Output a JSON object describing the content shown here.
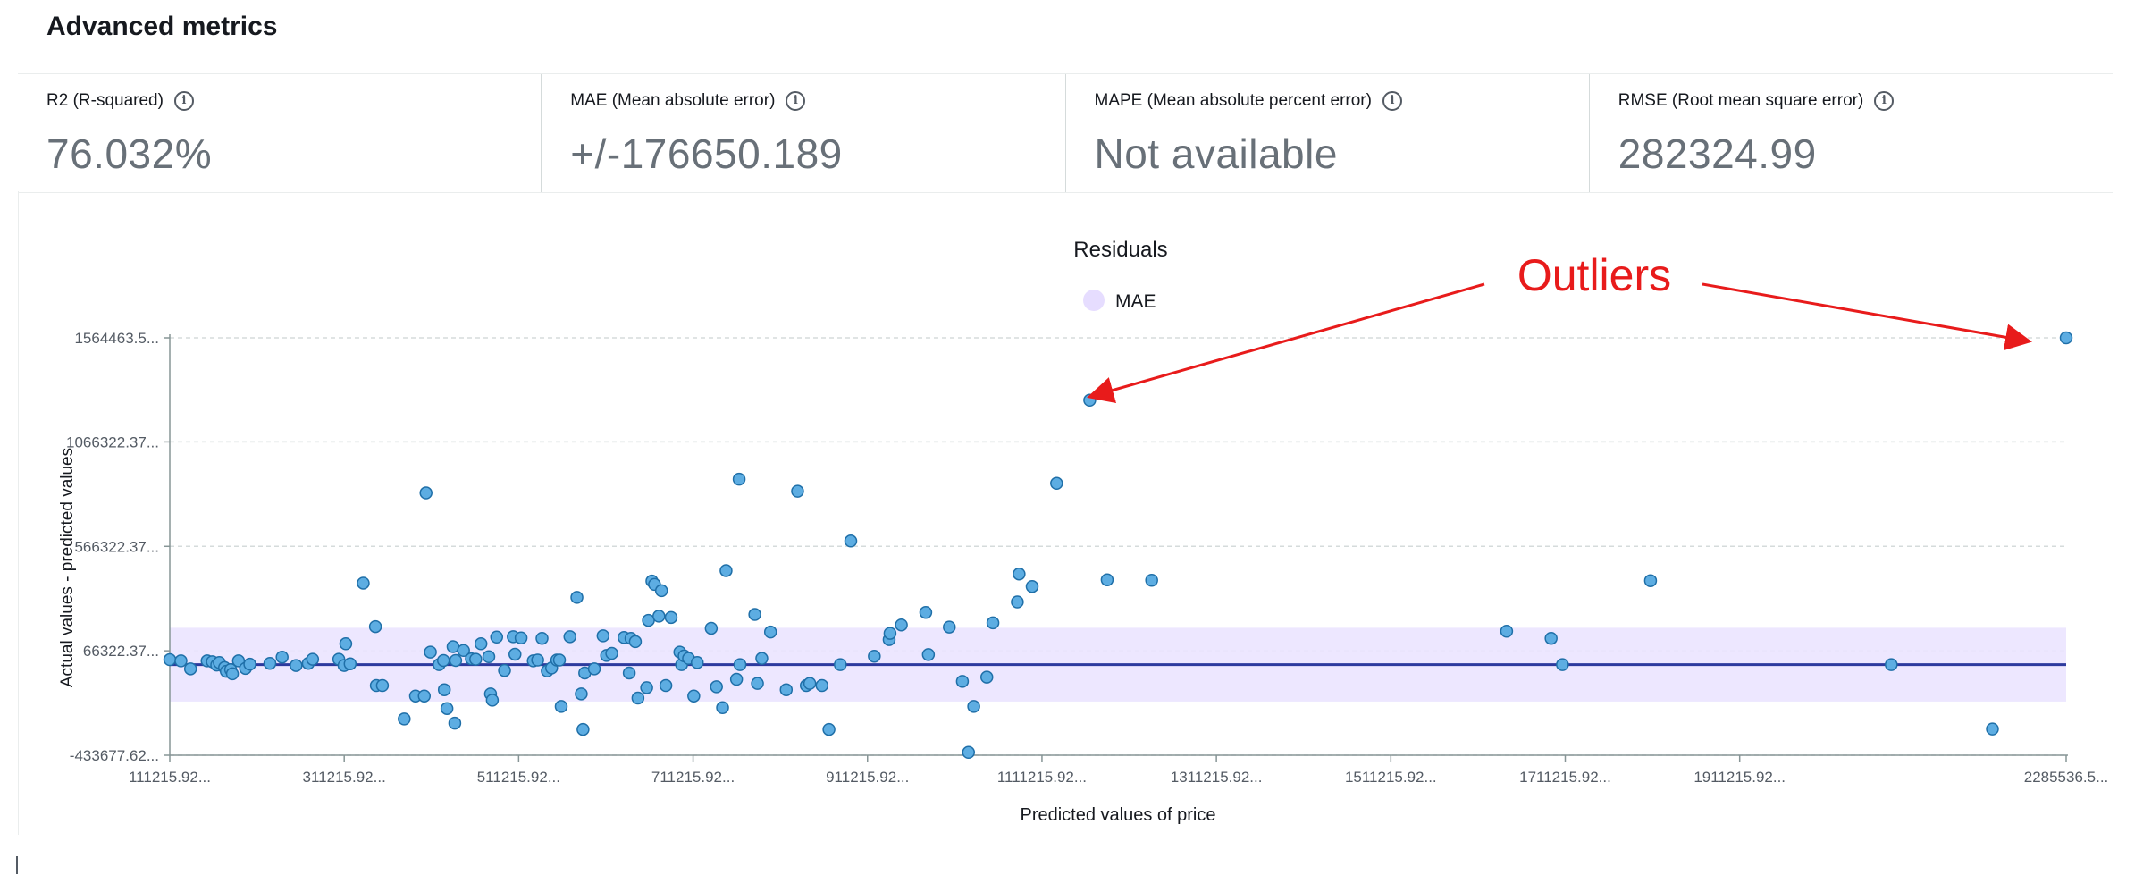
{
  "section": {
    "title": "Advanced metrics"
  },
  "metrics": [
    {
      "label": "R2 (R-squared)",
      "value": "76.032%"
    },
    {
      "label": "MAE (Mean absolute error)",
      "value": "+/-176650.189"
    },
    {
      "label": "MAPE (Mean absolute percent error)",
      "value": "Not available"
    },
    {
      "label": "RMSE (Root mean square error)",
      "value": "282324.99"
    }
  ],
  "chart_data": {
    "type": "scatter",
    "title": "Residuals",
    "legend": [
      {
        "name": "MAE",
        "color": "#e6ddff"
      }
    ],
    "xlabel": "Predicted values of price",
    "ylabel": "Actual values - predicted values",
    "x_ticks": [
      {
        "value": 111215.92,
        "label": "111215.92..."
      },
      {
        "value": 311215.92,
        "label": "311215.92..."
      },
      {
        "value": 511215.92,
        "label": "511215.92..."
      },
      {
        "value": 711215.92,
        "label": "711215.92..."
      },
      {
        "value": 911215.92,
        "label": "911215.92..."
      },
      {
        "value": 1111215.92,
        "label": "1111215.92..."
      },
      {
        "value": 1311215.92,
        "label": "1311215.92..."
      },
      {
        "value": 1511215.92,
        "label": "1511215.92..."
      },
      {
        "value": 1711215.92,
        "label": "1711215.92..."
      },
      {
        "value": 1911215.92,
        "label": "1911215.92..."
      },
      {
        "value": 2285536.5,
        "label": "2285536.5..."
      }
    ],
    "y_ticks": [
      {
        "value": 1564463.5,
        "label": "1564463.5..."
      },
      {
        "value": 1066322.37,
        "label": "1066322.37..."
      },
      {
        "value": 566322.37,
        "label": "566322.37..."
      },
      {
        "value": 66322.37,
        "label": "66322.37..."
      },
      {
        "value": -433677.62,
        "label": "-433677.62..."
      }
    ],
    "xlim": [
      111215.92,
      2285536.5
    ],
    "ylim": [
      -433677.62,
      1564463.5
    ],
    "mae_band": {
      "center": 0,
      "half_width": 176650.189
    },
    "grid": {
      "horizontal": true,
      "vertical": false
    },
    "point_color": "#5dade2",
    "points": [
      [
        111216,
        24000
      ],
      [
        124000,
        18000
      ],
      [
        135000,
        -20000
      ],
      [
        154000,
        18000
      ],
      [
        160000,
        14000
      ],
      [
        165000,
        -2000
      ],
      [
        168000,
        10000
      ],
      [
        174000,
        -14000
      ],
      [
        176000,
        -32000
      ],
      [
        181000,
        -24000
      ],
      [
        183000,
        -44000
      ],
      [
        190000,
        18000
      ],
      [
        198000,
        -18000
      ],
      [
        203000,
        2000
      ],
      [
        226000,
        6000
      ],
      [
        240000,
        36000
      ],
      [
        256000,
        -4000
      ],
      [
        270000,
        6000
      ],
      [
        275000,
        26000
      ],
      [
        305000,
        26000
      ],
      [
        311000,
        -4000
      ],
      [
        313000,
        100000
      ],
      [
        318000,
        4000
      ],
      [
        333000,
        390000
      ],
      [
        347000,
        182000
      ],
      [
        348000,
        -100000
      ],
      [
        355000,
        -100000
      ],
      [
        380000,
        -260000
      ],
      [
        393000,
        -150000
      ],
      [
        403000,
        -150000
      ],
      [
        405000,
        822000
      ],
      [
        410000,
        60000
      ],
      [
        420000,
        0
      ],
      [
        425000,
        20000
      ],
      [
        426000,
        -120000
      ],
      [
        429000,
        -210000
      ],
      [
        436000,
        86000
      ],
      [
        438000,
        -280000
      ],
      [
        439000,
        20000
      ],
      [
        448000,
        68000
      ],
      [
        457000,
        28000
      ],
      [
        462000,
        26000
      ],
      [
        468000,
        100000
      ],
      [
        477000,
        38000
      ],
      [
        479000,
        -140000
      ],
      [
        481000,
        -170000
      ],
      [
        486000,
        132000
      ],
      [
        495000,
        -28000
      ],
      [
        505000,
        134000
      ],
      [
        507000,
        50000
      ],
      [
        514000,
        128000
      ],
      [
        528000,
        18000
      ],
      [
        533000,
        22000
      ],
      [
        538000,
        126000
      ],
      [
        544000,
        -30000
      ],
      [
        549000,
        -16000
      ],
      [
        555000,
        22000
      ],
      [
        558000,
        22000
      ],
      [
        560000,
        -200000
      ],
      [
        570000,
        134000
      ],
      [
        578000,
        322000
      ],
      [
        583000,
        -140000
      ],
      [
        585000,
        -310000
      ],
      [
        587000,
        -40000
      ],
      [
        598000,
        -20000
      ],
      [
        608000,
        138000
      ],
      [
        612000,
        44000
      ],
      [
        618000,
        54000
      ],
      [
        632000,
        130000
      ],
      [
        638000,
        -40000
      ],
      [
        640000,
        126000
      ],
      [
        645000,
        110000
      ],
      [
        648000,
        -160000
      ],
      [
        658000,
        -110000
      ],
      [
        660000,
        212000
      ],
      [
        664000,
        400000
      ],
      [
        667000,
        384000
      ],
      [
        672000,
        232000
      ],
      [
        675000,
        354000
      ],
      [
        680000,
        -100000
      ],
      [
        686000,
        226000
      ],
      [
        696000,
        60000
      ],
      [
        698000,
        0
      ],
      [
        701000,
        42000
      ],
      [
        706000,
        30000
      ],
      [
        712000,
        -150000
      ],
      [
        716000,
        10000
      ],
      [
        732000,
        174000
      ],
      [
        738000,
        -106000
      ],
      [
        745000,
        -206000
      ],
      [
        749000,
        450000
      ],
      [
        761000,
        -70000
      ],
      [
        764000,
        888000
      ],
      [
        765000,
        0
      ],
      [
        782000,
        240000
      ],
      [
        785000,
        -90000
      ],
      [
        790000,
        30000
      ],
      [
        800000,
        156000
      ],
      [
        818000,
        -120000
      ],
      [
        831000,
        830000
      ],
      [
        841000,
        -100000
      ],
      [
        845000,
        -90000
      ],
      [
        859000,
        -100000
      ],
      [
        867000,
        -310000
      ],
      [
        880000,
        0
      ],
      [
        892000,
        592000
      ],
      [
        919000,
        40000
      ],
      [
        936000,
        120000
      ],
      [
        937000,
        150000
      ],
      [
        950000,
        190000
      ],
      [
        978000,
        250000
      ],
      [
        981000,
        48000
      ],
      [
        1005000,
        180000
      ],
      [
        1020000,
        -80000
      ],
      [
        1027000,
        -420000
      ],
      [
        1033000,
        -200000
      ],
      [
        1048000,
        -60000
      ],
      [
        1055000,
        200000
      ],
      [
        1083000,
        300000
      ],
      [
        1085000,
        434000
      ],
      [
        1100000,
        374000
      ],
      [
        1128000,
        868000
      ],
      [
        1166000,
        1266000
      ],
      [
        1186000,
        406000
      ],
      [
        1237000,
        404000
      ],
      [
        1644000,
        160000
      ],
      [
        1695000,
        126000
      ],
      [
        1708000,
        0
      ],
      [
        1809000,
        402000
      ],
      [
        2085000,
        0
      ],
      [
        2201000,
        -308000
      ],
      [
        2285536,
        1564463
      ]
    ]
  },
  "annotation": {
    "text": "Outliers",
    "color": "#e81b1b"
  }
}
